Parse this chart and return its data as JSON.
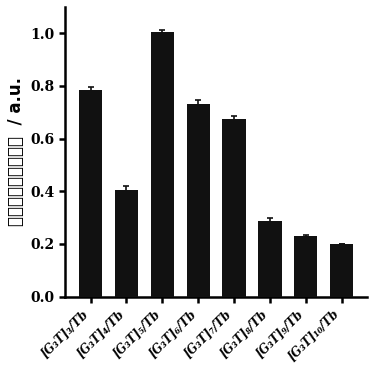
{
  "categories": [
    "[G₃T]₃/Tb",
    "[G₃T]₄/Tb",
    "[G₃T]₅/Tb",
    "[G₃T]₆/Tb",
    "[G₃T]₇/Tb",
    "[G₃T]₈/Tb",
    "[G₃T]₉/Tb",
    "[G₃T]₁₀/Tb"
  ],
  "values": [
    0.785,
    0.405,
    1.005,
    0.73,
    0.675,
    0.285,
    0.23,
    0.2
  ],
  "errors": [
    0.01,
    0.015,
    0.008,
    0.015,
    0.012,
    0.012,
    0.005,
    0.0
  ],
  "bar_color": "#111111",
  "error_color": "#111111",
  "ylabel": "归一化的荧光强度値  / a.u.",
  "ylim": [
    0.0,
    1.1
  ],
  "yticks": [
    0.0,
    0.2,
    0.4,
    0.6,
    0.8,
    1.0
  ],
  "bar_width": 0.65,
  "background_color": "#ffffff",
  "tick_fontsize": 10,
  "ylabel_fontsize": 12,
  "xtick_fontsize": 8.5
}
